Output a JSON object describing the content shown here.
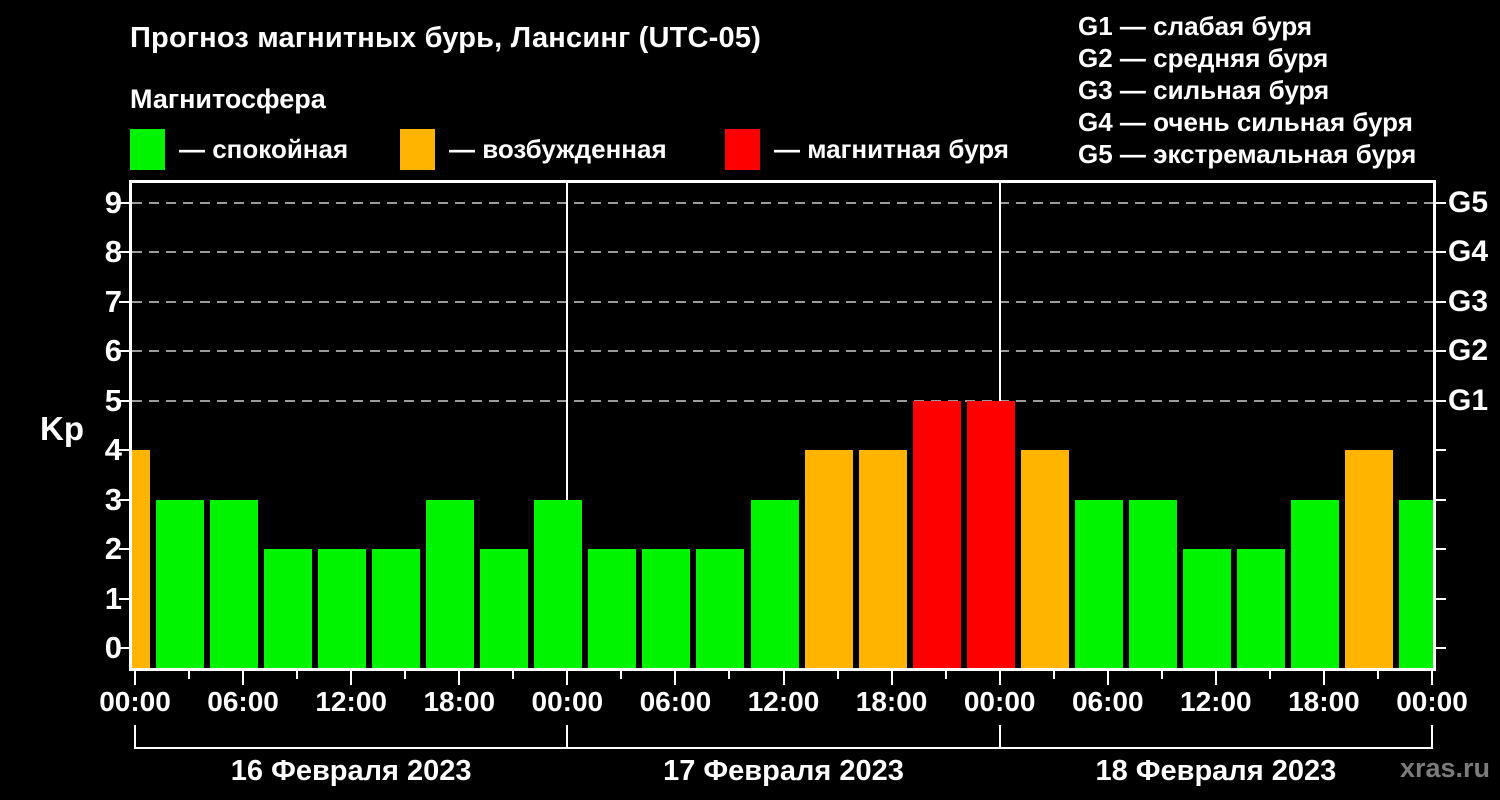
{
  "title": "Прогноз магнитных бурь, Лансинг (UTC-05)",
  "subtitle": "Магнитосфера",
  "legend": {
    "items": [
      {
        "status": "quiet",
        "label": "— спокойная",
        "color": "#00f400"
      },
      {
        "status": "excited",
        "label": "— возбужденная",
        "color": "#ffb400"
      },
      {
        "status": "storm",
        "label": "— магнитная буря",
        "color": "#ff0000"
      }
    ]
  },
  "g_scale_legend": {
    "lines": [
      "G1 — слабая буря",
      "G2 — средняя буря",
      "G3 — сильная буря",
      "G4 — очень сильная буря",
      "G5 — экстремальная буря"
    ]
  },
  "watermark": "xras.ru",
  "chart_data": {
    "type": "bar",
    "title": "Прогноз магнитных бурь, Лансинг (UTC-05)",
    "subtitle": "Магнитосфера",
    "ylabel": "Kp",
    "ylim": [
      -0.4,
      9.4
    ],
    "yticks": [
      0,
      1,
      2,
      3,
      4,
      5,
      6,
      7,
      8,
      9
    ],
    "dashed_gridlines_kp": [
      5,
      6,
      7,
      8,
      9
    ],
    "grid": "dashed horizontal at Kp 5-9",
    "right_axis_levels": [
      {
        "kp": 5,
        "label": "G1"
      },
      {
        "kp": 6,
        "label": "G2"
      },
      {
        "kp": 7,
        "label": "G3"
      },
      {
        "kp": 8,
        "label": "G4"
      },
      {
        "kp": 9,
        "label": "G5"
      }
    ],
    "x_unit": "hours from 16.02.2023 00:00 local (UTC-05)",
    "x_hours": [
      0,
      3,
      6,
      9,
      12,
      15,
      18,
      21,
      24,
      27,
      30,
      33,
      36,
      39,
      42,
      45,
      48,
      51,
      54,
      57,
      60,
      63,
      66,
      69,
      72
    ],
    "values": [
      4,
      3,
      3,
      2,
      2,
      2,
      3,
      2,
      3,
      2,
      2,
      2,
      3,
      4,
      4,
      5,
      5,
      4,
      3,
      3,
      2,
      2,
      3,
      4,
      3
    ],
    "statuses": [
      "excited",
      "quiet",
      "quiet",
      "quiet",
      "quiet",
      "quiet",
      "quiet",
      "quiet",
      "quiet",
      "quiet",
      "quiet",
      "quiet",
      "quiet",
      "excited",
      "excited",
      "storm",
      "storm",
      "excited",
      "quiet",
      "quiet",
      "quiet",
      "quiet",
      "quiet",
      "excited",
      "quiet"
    ],
    "colors": {
      "quiet": "#00f400",
      "excited": "#ffb400",
      "storm": "#ff0000"
    },
    "x_major_tick_every_hours": 6,
    "x_minor_tick_every_hours": 3,
    "x_major_labels_cycle": [
      "00:00",
      "06:00",
      "12:00",
      "18:00"
    ],
    "day_divider_hours": [
      24,
      48
    ],
    "days": [
      {
        "label": "16 Февраля 2023",
        "start_hour": 0,
        "end_hour": 24
      },
      {
        "label": "17 Февраля 2023",
        "start_hour": 24,
        "end_hour": 48
      },
      {
        "label": "18 Февраля 2023",
        "start_hour": 48,
        "end_hour": 72
      }
    ],
    "legend_position": "top",
    "background": "#000000"
  }
}
